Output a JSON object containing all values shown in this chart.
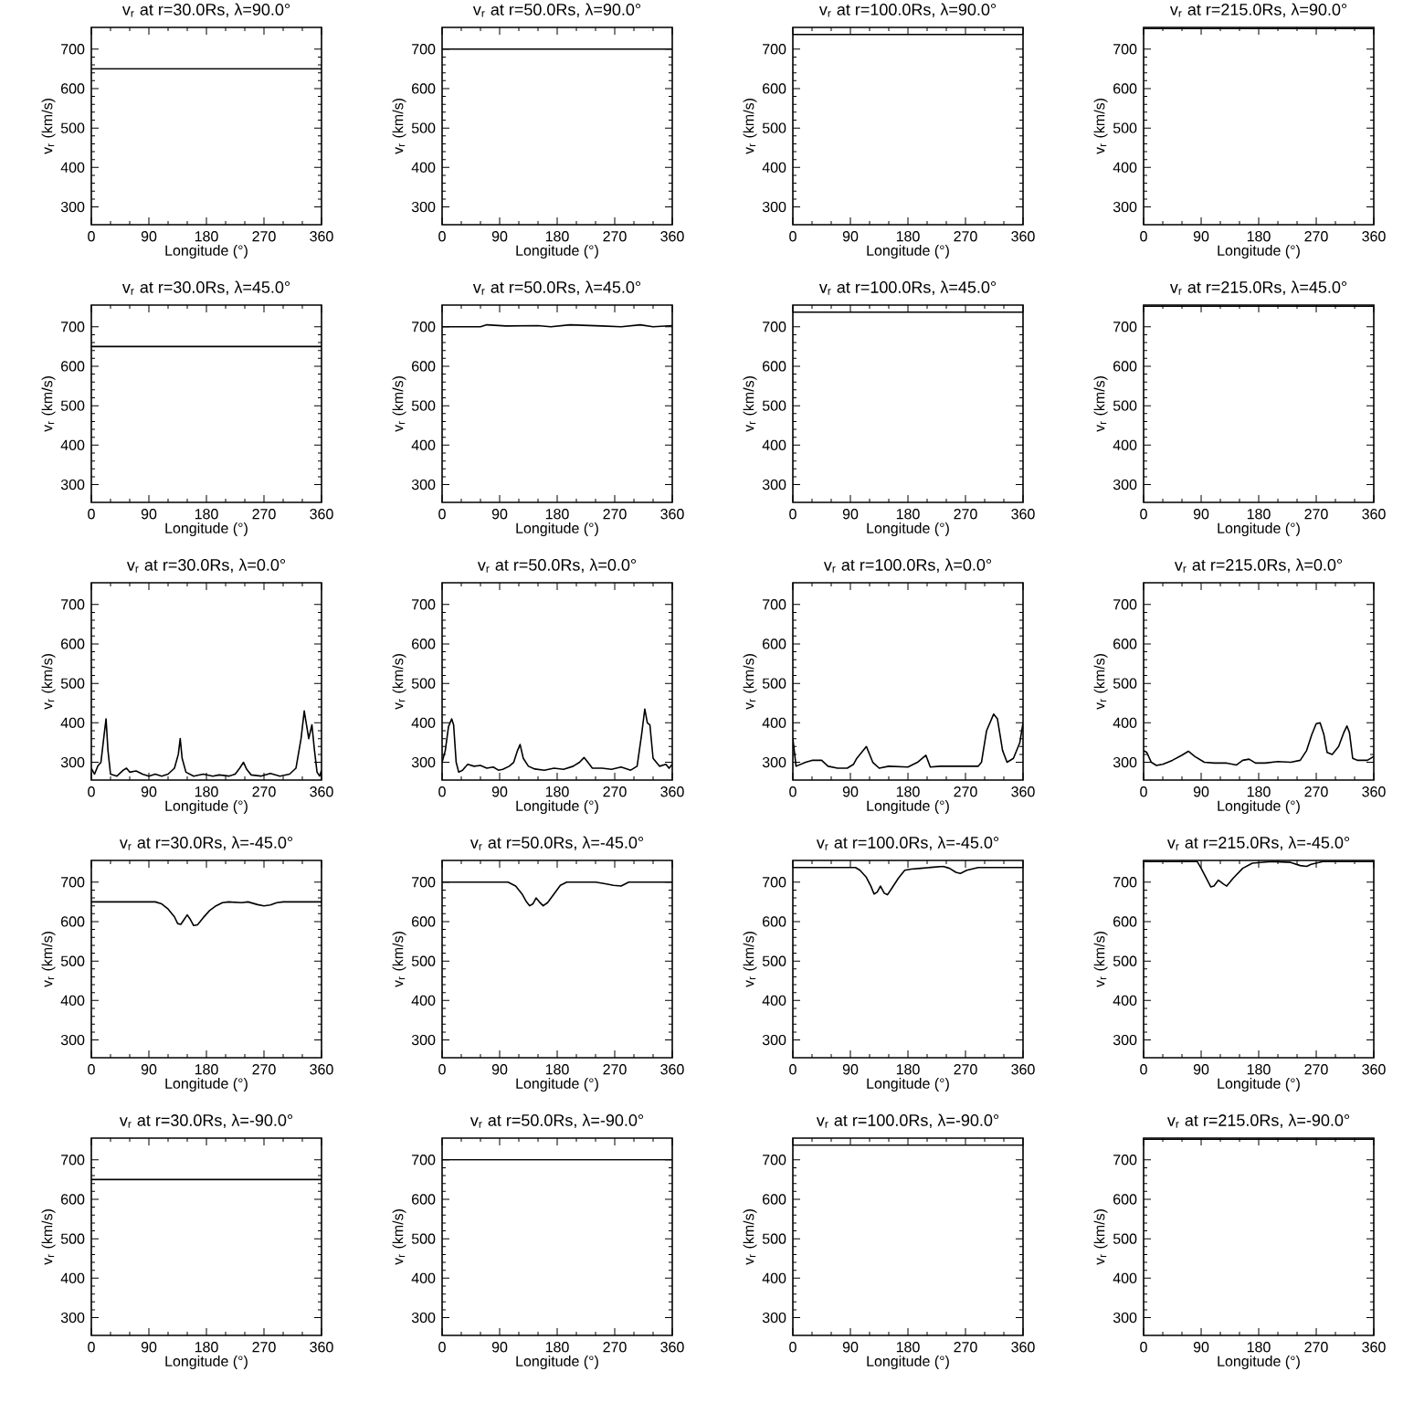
{
  "chart_data": [
    {
      "type": "line",
      "title": "v$_{r}$ at r=30.0Rs, λ=90.0°",
      "xlabel": "Longitude (°)",
      "ylabel": "v$_{r}$ (km/s)",
      "color": "#000000",
      "xlim": [
        0,
        360
      ],
      "ylim": [
        255,
        755
      ],
      "xticks": [
        0,
        90,
        180,
        270,
        360
      ],
      "yticks": [
        300,
        400,
        500,
        600,
        700
      ],
      "x": [
        0,
        360
      ],
      "values": [
        650,
        650
      ]
    },
    {
      "type": "line",
      "title": "v$_{r}$ at r=50.0Rs, λ=90.0°",
      "xlabel": "Longitude (°)",
      "ylabel": "v$_{r}$ (km/s)",
      "color": "#000000",
      "xlim": [
        0,
        360
      ],
      "ylim": [
        255,
        755
      ],
      "xticks": [
        0,
        90,
        180,
        270,
        360
      ],
      "yticks": [
        300,
        400,
        500,
        600,
        700
      ],
      "x": [
        0,
        360
      ],
      "values": [
        700,
        700
      ]
    },
    {
      "type": "line",
      "title": "v$_{r}$ at r=100.0Rs, λ=90.0°",
      "xlabel": "Longitude (°)",
      "ylabel": "v$_{r}$ (km/s)",
      "color": "#000000",
      "xlim": [
        0,
        360
      ],
      "ylim": [
        255,
        755
      ],
      "xticks": [
        0,
        90,
        180,
        270,
        360
      ],
      "yticks": [
        300,
        400,
        500,
        600,
        700
      ],
      "x": [
        0,
        360
      ],
      "values": [
        737,
        737
      ]
    },
    {
      "type": "line",
      "title": "v$_{r}$ at r=215.0Rs, λ=90.0°",
      "xlabel": "Longitude (°)",
      "ylabel": "v$_{r}$ (km/s)",
      "color": "#000000",
      "xlim": [
        0,
        360
      ],
      "ylim": [
        255,
        755
      ],
      "xticks": [
        0,
        90,
        180,
        270,
        360
      ],
      "yticks": [
        300,
        400,
        500,
        600,
        700
      ],
      "x": [
        0,
        360
      ],
      "values": [
        752,
        752
      ]
    },
    {
      "type": "line",
      "title": "v$_{r}$ at r=30.0Rs, λ=45.0°",
      "xlabel": "Longitude (°)",
      "ylabel": "v$_{r}$ (km/s)",
      "color": "#000000",
      "xlim": [
        0,
        360
      ],
      "ylim": [
        255,
        755
      ],
      "xticks": [
        0,
        90,
        180,
        270,
        360
      ],
      "yticks": [
        300,
        400,
        500,
        600,
        700
      ],
      "x": [
        0,
        360
      ],
      "values": [
        650,
        650
      ]
    },
    {
      "type": "line",
      "title": "v$_{r}$ at r=50.0Rs, λ=45.0°",
      "xlabel": "Longitude (°)",
      "ylabel": "v$_{r}$ (km/s)",
      "color": "#000000",
      "xlim": [
        0,
        360
      ],
      "ylim": [
        255,
        755
      ],
      "xticks": [
        0,
        90,
        180,
        270,
        360
      ],
      "yticks": [
        300,
        400,
        500,
        600,
        700
      ],
      "x": [
        0,
        60,
        70,
        100,
        150,
        170,
        200,
        250,
        280,
        310,
        330,
        360
      ],
      "values": [
        700,
        700,
        705,
        702,
        703,
        700,
        705,
        702,
        700,
        705,
        700,
        703
      ]
    },
    {
      "type": "line",
      "title": "v$_{r}$ at r=100.0Rs, λ=45.0°",
      "xlabel": "Longitude (°)",
      "ylabel": "v$_{r}$ (km/s)",
      "color": "#000000",
      "xlim": [
        0,
        360
      ],
      "ylim": [
        255,
        755
      ],
      "xticks": [
        0,
        90,
        180,
        270,
        360
      ],
      "yticks": [
        300,
        400,
        500,
        600,
        700
      ],
      "x": [
        0,
        360
      ],
      "values": [
        737,
        737
      ]
    },
    {
      "type": "line",
      "title": "v$_{r}$ at r=215.0Rs, λ=45.0°",
      "xlabel": "Longitude (°)",
      "ylabel": "v$_{r}$ (km/s)",
      "color": "#000000",
      "xlim": [
        0,
        360
      ],
      "ylim": [
        255,
        755
      ],
      "xticks": [
        0,
        90,
        180,
        270,
        360
      ],
      "yticks": [
        300,
        400,
        500,
        600,
        700
      ],
      "x": [
        0,
        360
      ],
      "values": [
        752,
        752
      ]
    },
    {
      "type": "line",
      "title": "v$_{r}$ at r=30.0Rs, λ=0.0°",
      "xlabel": "Longitude (°)",
      "ylabel": "v$_{r}$ (km/s)",
      "color": "#000000",
      "xlim": [
        0,
        360
      ],
      "ylim": [
        255,
        755
      ],
      "xticks": [
        0,
        90,
        180,
        270,
        360
      ],
      "yticks": [
        300,
        400,
        500,
        600,
        700
      ],
      "x": [
        0,
        5,
        10,
        15,
        20,
        23,
        26,
        30,
        40,
        50,
        55,
        60,
        70,
        80,
        90,
        100,
        110,
        120,
        130,
        136,
        139,
        142,
        148,
        160,
        175,
        190,
        200,
        215,
        225,
        232,
        238,
        243,
        250,
        265,
        280,
        295,
        310,
        320,
        328,
        333,
        337,
        340,
        345,
        349,
        353,
        357,
        360
      ],
      "values": [
        285,
        270,
        290,
        300,
        370,
        410,
        330,
        270,
        265,
        280,
        285,
        275,
        278,
        270,
        265,
        270,
        265,
        270,
        285,
        320,
        360,
        310,
        275,
        265,
        270,
        265,
        268,
        265,
        270,
        285,
        300,
        282,
        268,
        265,
        272,
        265,
        270,
        285,
        360,
        430,
        390,
        360,
        395,
        330,
        275,
        265,
        280
      ]
    },
    {
      "type": "line",
      "title": "v$_{r}$ at r=50.0Rs, λ=0.0°",
      "xlabel": "Longitude (°)",
      "ylabel": "v$_{r}$ (km/s)",
      "color": "#000000",
      "xlim": [
        0,
        360
      ],
      "ylim": [
        255,
        755
      ],
      "xticks": [
        0,
        90,
        180,
        270,
        360
      ],
      "yticks": [
        300,
        400,
        500,
        600,
        700
      ],
      "x": [
        0,
        5,
        10,
        15,
        18,
        22,
        26,
        32,
        40,
        50,
        60,
        70,
        80,
        88,
        95,
        105,
        112,
        118,
        122,
        127,
        135,
        145,
        160,
        175,
        190,
        205,
        215,
        222,
        228,
        235,
        250,
        265,
        280,
        295,
        305,
        312,
        317,
        321,
        325,
        330,
        340,
        350,
        355,
        360
      ],
      "values": [
        300,
        330,
        390,
        410,
        395,
        300,
        275,
        280,
        295,
        290,
        292,
        285,
        288,
        280,
        282,
        290,
        300,
        330,
        345,
        310,
        290,
        283,
        280,
        285,
        282,
        290,
        300,
        312,
        300,
        285,
        285,
        282,
        288,
        280,
        290,
        370,
        435,
        400,
        395,
        310,
        290,
        295,
        285,
        295
      ]
    },
    {
      "type": "line",
      "title": "v$_{r}$ at r=100.0Rs, λ=0.0°",
      "xlabel": "Longitude (°)",
      "ylabel": "v$_{r}$ (km/s)",
      "color": "#000000",
      "xlim": [
        0,
        360
      ],
      "ylim": [
        255,
        755
      ],
      "xticks": [
        0,
        90,
        180,
        270,
        360
      ],
      "yticks": [
        300,
        400,
        500,
        600,
        700
      ],
      "x": [
        0,
        5,
        20,
        30,
        45,
        55,
        70,
        85,
        95,
        100,
        115,
        125,
        135,
        150,
        180,
        195,
        208,
        215,
        230,
        290,
        295,
        303,
        314,
        320,
        328,
        335,
        345,
        355,
        360
      ],
      "values": [
        360,
        290,
        300,
        305,
        305,
        290,
        285,
        285,
        295,
        310,
        340,
        300,
        285,
        290,
        288,
        300,
        318,
        288,
        290,
        290,
        300,
        380,
        422,
        410,
        330,
        300,
        310,
        350,
        400
      ]
    },
    {
      "type": "line",
      "title": "v$_{r}$ at r=215.0Rs, λ=0.0°",
      "xlabel": "Longitude (°)",
      "ylabel": "v$_{r}$ (km/s)",
      "color": "#000000",
      "xlim": [
        0,
        360
      ],
      "ylim": [
        255,
        755
      ],
      "xticks": [
        0,
        90,
        180,
        270,
        360
      ],
      "yticks": [
        300,
        400,
        500,
        600,
        700
      ],
      "x": [
        0,
        5,
        12,
        20,
        30,
        45,
        60,
        70,
        80,
        95,
        110,
        130,
        145,
        155,
        165,
        175,
        190,
        210,
        230,
        245,
        255,
        263,
        270,
        276,
        282,
        287,
        295,
        305,
        313,
        318,
        322,
        327,
        335,
        350,
        360
      ],
      "values": [
        330,
        325,
        300,
        292,
        295,
        305,
        318,
        328,
        315,
        300,
        298,
        298,
        293,
        305,
        308,
        298,
        298,
        302,
        300,
        305,
        330,
        370,
        398,
        400,
        370,
        325,
        320,
        340,
        375,
        392,
        375,
        310,
        305,
        305,
        315
      ]
    },
    {
      "type": "line",
      "title": "v$_{r}$ at r=30.0Rs, λ=-45.0°",
      "xlabel": "Longitude (°)",
      "ylabel": "v$_{r}$ (km/s)",
      "color": "#000000",
      "xlim": [
        0,
        360
      ],
      "ylim": [
        255,
        755
      ],
      "xticks": [
        0,
        90,
        180,
        270,
        360
      ],
      "yticks": [
        300,
        400,
        500,
        600,
        700
      ],
      "x": [
        0,
        100,
        110,
        120,
        130,
        135,
        140,
        145,
        150,
        155,
        160,
        166,
        175,
        185,
        195,
        205,
        215,
        235,
        245,
        260,
        270,
        280,
        290,
        300,
        360
      ],
      "values": [
        650,
        650,
        645,
        632,
        612,
        595,
        593,
        605,
        617,
        605,
        590,
        592,
        610,
        628,
        640,
        648,
        650,
        648,
        650,
        643,
        640,
        642,
        648,
        650,
        650
      ]
    },
    {
      "type": "line",
      "title": "v$_{r}$ at r=50.0Rs, λ=-45.0°",
      "xlabel": "Longitude (°)",
      "ylabel": "v$_{r}$ (km/s)",
      "color": "#000000",
      "xlim": [
        0,
        360
      ],
      "ylim": [
        255,
        755
      ],
      "xticks": [
        0,
        90,
        180,
        270,
        360
      ],
      "yticks": [
        300,
        400,
        500,
        600,
        700
      ],
      "x": [
        0,
        103,
        115,
        125,
        132,
        137,
        142,
        147,
        152,
        158,
        165,
        175,
        185,
        195,
        240,
        255,
        268,
        280,
        292,
        360
      ],
      "values": [
        700,
        700,
        690,
        670,
        650,
        640,
        645,
        660,
        650,
        640,
        648,
        670,
        692,
        700,
        700,
        696,
        692,
        690,
        700,
        700
      ]
    },
    {
      "type": "line",
      "title": "v$_{r}$ at r=100.0Rs, λ=-45.0°",
      "xlabel": "Longitude (°)",
      "ylabel": "v$_{r}$ (km/s)",
      "color": "#000000",
      "xlim": [
        0,
        360
      ],
      "ylim": [
        255,
        755
      ],
      "xticks": [
        0,
        90,
        180,
        270,
        360
      ],
      "yticks": [
        300,
        400,
        500,
        600,
        700
      ],
      "x": [
        0,
        98,
        105,
        115,
        122,
        127,
        132,
        137,
        143,
        148,
        155,
        165,
        175,
        185,
        200,
        220,
        235,
        245,
        255,
        262,
        272,
        290,
        360
      ],
      "values": [
        737,
        737,
        730,
        712,
        690,
        670,
        675,
        690,
        672,
        668,
        685,
        710,
        730,
        733,
        735,
        738,
        740,
        735,
        725,
        722,
        730,
        737,
        737
      ]
    },
    {
      "type": "line",
      "title": "v$_{r}$ at r=215.0Rs, λ=-45.0°",
      "xlabel": "Longitude (°)",
      "ylabel": "v$_{r}$ (km/s)",
      "color": "#000000",
      "xlim": [
        0,
        360
      ],
      "ylim": [
        255,
        755
      ],
      "xticks": [
        0,
        90,
        180,
        270,
        360
      ],
      "yticks": [
        300,
        400,
        500,
        600,
        700
      ],
      "x": [
        0,
        84,
        90,
        98,
        105,
        110,
        117,
        125,
        130,
        140,
        155,
        170,
        200,
        230,
        245,
        255,
        262,
        280,
        360
      ],
      "values": [
        752,
        752,
        735,
        710,
        688,
        690,
        705,
        695,
        690,
        710,
        735,
        748,
        752,
        750,
        742,
        740,
        745,
        752,
        752
      ]
    },
    {
      "type": "line",
      "title": "v$_{r}$ at r=30.0Rs, λ=-90.0°",
      "xlabel": "Longitude (°)",
      "ylabel": "v$_{r}$ (km/s)",
      "color": "#000000",
      "xlim": [
        0,
        360
      ],
      "ylim": [
        255,
        755
      ],
      "xticks": [
        0,
        90,
        180,
        270,
        360
      ],
      "yticks": [
        300,
        400,
        500,
        600,
        700
      ],
      "x": [
        0,
        360
      ],
      "values": [
        650,
        650
      ]
    },
    {
      "type": "line",
      "title": "v$_{r}$ at r=50.0Rs, λ=-90.0°",
      "xlabel": "Longitude (°)",
      "ylabel": "v$_{r}$ (km/s)",
      "color": "#000000",
      "xlim": [
        0,
        360
      ],
      "ylim": [
        255,
        755
      ],
      "xticks": [
        0,
        90,
        180,
        270,
        360
      ],
      "yticks": [
        300,
        400,
        500,
        600,
        700
      ],
      "x": [
        0,
        360
      ],
      "values": [
        700,
        700
      ]
    },
    {
      "type": "line",
      "title": "v$_{r}$ at r=100.0Rs, λ=-90.0°",
      "xlabel": "Longitude (°)",
      "ylabel": "v$_{r}$ (km/s)",
      "color": "#000000",
      "xlim": [
        0,
        360
      ],
      "ylim": [
        255,
        755
      ],
      "xticks": [
        0,
        90,
        180,
        270,
        360
      ],
      "yticks": [
        300,
        400,
        500,
        600,
        700
      ],
      "x": [
        0,
        360
      ],
      "values": [
        737,
        737
      ]
    },
    {
      "type": "line",
      "title": "v$_{r}$ at r=215.0Rs, λ=-90.0°",
      "xlabel": "Longitude (°)",
      "ylabel": "v$_{r}$ (km/s)",
      "color": "#000000",
      "xlim": [
        0,
        360
      ],
      "ylim": [
        255,
        755
      ],
      "xticks": [
        0,
        90,
        180,
        270,
        360
      ],
      "yticks": [
        300,
        400,
        500,
        600,
        700
      ],
      "x": [
        0,
        360
      ],
      "values": [
        752,
        752
      ]
    }
  ]
}
